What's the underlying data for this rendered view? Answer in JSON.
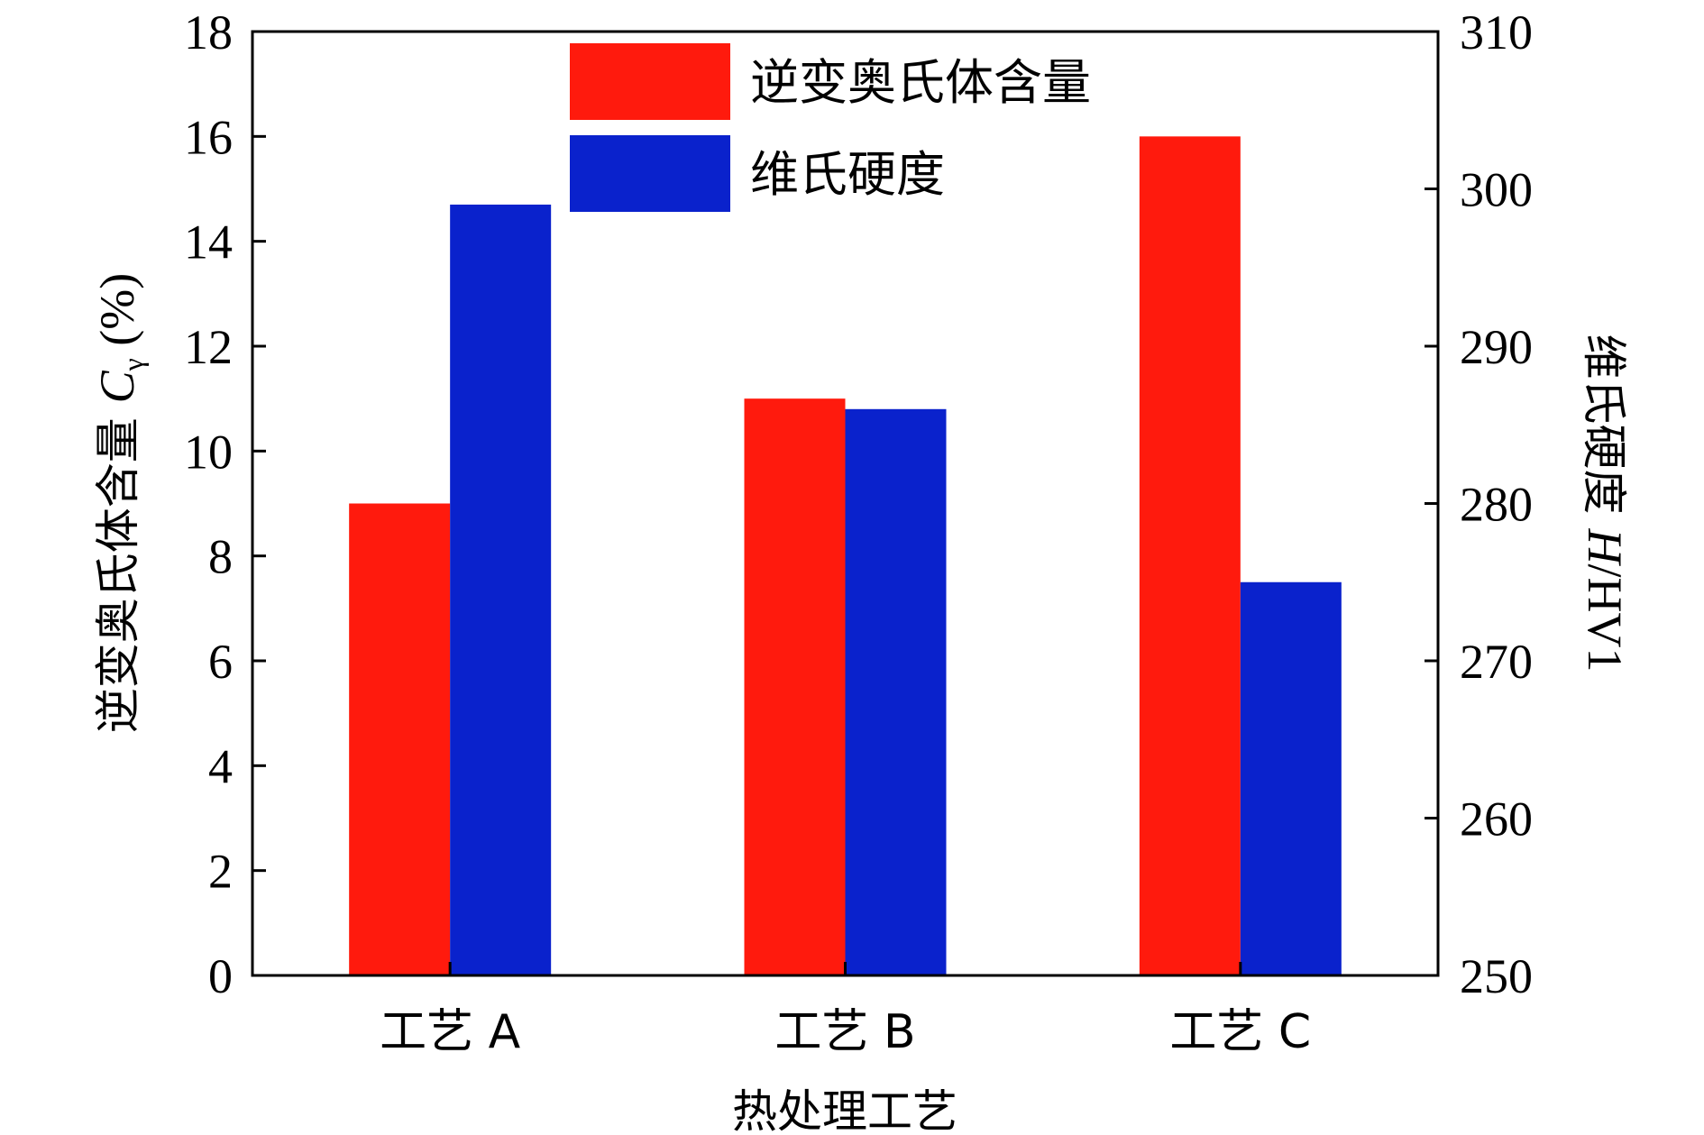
{
  "chart_data": {
    "type": "bar",
    "xlabel": "热处理工艺",
    "categories": [
      "工艺 A",
      "工艺 B",
      "工艺 C"
    ],
    "left_axis": {
      "label_prefix": "逆变奥氏体含量 ",
      "label_var": "C",
      "label_sub": "γ",
      "label_suffix": " (%)",
      "ylim": [
        0,
        18
      ],
      "ticks": [
        0,
        2,
        4,
        6,
        8,
        10,
        12,
        14,
        16,
        18
      ]
    },
    "right_axis": {
      "label_prefix": "维氏硬度 ",
      "label_var": "H",
      "label_suffix": "/HV1",
      "ylim": [
        250,
        310
      ],
      "ticks": [
        250,
        260,
        270,
        280,
        290,
        300,
        310
      ]
    },
    "series": [
      {
        "name": "逆变奥氏体含量",
        "axis": "left",
        "color": "#ff1a0d",
        "values": [
          9,
          11,
          16
        ]
      },
      {
        "name": "维氏硬度",
        "axis": "right",
        "color": "#0a22cc",
        "values": [
          299,
          286,
          275
        ]
      }
    ],
    "legend_position": "top-center",
    "grid": false
  }
}
